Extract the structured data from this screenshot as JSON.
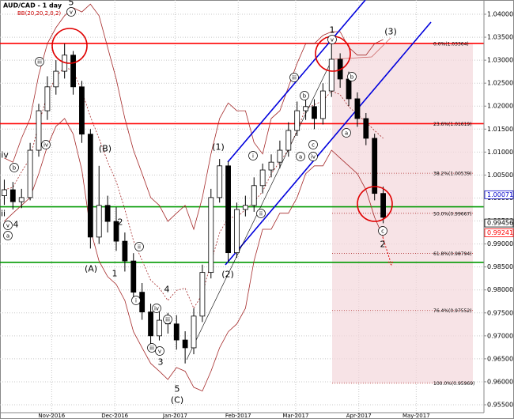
{
  "chart_data": {
    "type": "candlestick",
    "title": "AUD/CAD - 1 day",
    "subtitle": "BB(20,20,2,0,2)",
    "xlim": [
      0,
      168.6
    ],
    "ylim": [
      0.95328,
      1.0431
    ],
    "grid": true,
    "xticks": [
      {
        "value": 18,
        "label": "Nov-2016"
      },
      {
        "value": 40,
        "label": "Dec-2016"
      },
      {
        "value": 61,
        "label": "Jan-2017"
      },
      {
        "value": 83,
        "label": "Feb-2017"
      },
      {
        "value": 103,
        "label": "Mar-2017"
      },
      {
        "value": 125,
        "label": "Apr-2017"
      },
      {
        "value": 145,
        "label": "May-2017"
      }
    ],
    "yticks": [
      {
        "value": 1.04,
        "label": "1.04000"
      },
      {
        "value": 1.035,
        "label": "1.03500"
      },
      {
        "value": 1.03,
        "label": "1.03000"
      },
      {
        "value": 1.025,
        "label": "1.02500"
      },
      {
        "value": 1.02,
        "label": "1.02000"
      },
      {
        "value": 1.015,
        "label": "1.01500"
      },
      {
        "value": 1.01,
        "label": "1.01000"
      },
      {
        "value": 1.005,
        "label": "1.00500"
      },
      {
        "value": 1.0,
        "label": "1.00000"
      },
      {
        "value": 0.995,
        "label": "0.99500"
      },
      {
        "value": 0.99,
        "label": "0.99000"
      },
      {
        "value": 0.985,
        "label": "0.98500"
      },
      {
        "value": 0.98,
        "label": "0.98000"
      },
      {
        "value": 0.975,
        "label": "0.97500"
      },
      {
        "value": 0.97,
        "label": "0.97000"
      },
      {
        "value": 0.965,
        "label": "0.96500"
      },
      {
        "value": 0.96,
        "label": "0.96000"
      },
      {
        "value": 0.955,
        "label": "0.95500"
      }
    ],
    "x": [
      1.5,
      4.5,
      7.5,
      10.5,
      13.5,
      16.5,
      19.5,
      22.5,
      25.5,
      28.5,
      31.5,
      34.5,
      37.5,
      40.5,
      43.5,
      46.5,
      49.5,
      52.5,
      55.5,
      58.5,
      61.5,
      64.5,
      67.5,
      70.5,
      73.5,
      76.5,
      79.5,
      82.5,
      85.5,
      88.5,
      91.5,
      94.5,
      97.5,
      100.5,
      103.5,
      106.5,
      109.5,
      112.5,
      115.5,
      118.5,
      121.5,
      124.5,
      127.5,
      130.5,
      133.5
    ],
    "open": [
      1.0005,
      1.0018,
      0.9992,
      1.0001,
      1.0104,
      1.019,
      1.0242,
      1.0276,
      1.0311,
      1.0242,
      1.0139,
      0.9915,
      0.9984,
      0.9949,
      0.9906,
      0.9863,
      0.9795,
      0.9752,
      0.97,
      0.9734,
      0.9726,
      0.9691,
      0.9674,
      0.9743,
      0.9838,
      1.0001,
      1.007,
      0.9881,
      0.9975,
      0.9984,
      1.0027,
      1.0061,
      1.0078,
      1.0104,
      1.0147,
      1.019,
      1.0199,
      1.0173,
      1.0233,
      1.0302,
      1.0259,
      1.0216,
      1.0173,
      1.013,
      1.001
    ],
    "high": [
      1.004,
      1.0035,
      1.002,
      1.012,
      1.0205,
      1.0265,
      1.03,
      1.0336,
      1.032,
      1.0255,
      1.015,
      1.007,
      1.0005,
      0.998,
      0.9925,
      0.988,
      0.9815,
      0.977,
      0.976,
      0.975,
      0.9745,
      0.971,
      0.976,
      0.9855,
      1.002,
      1.0085,
      1.008,
      0.999,
      1.0005,
      1.0045,
      1.0075,
      1.0095,
      1.0125,
      1.0165,
      1.021,
      1.023,
      1.0215,
      1.025,
      1.0336,
      1.0315,
      1.0275,
      1.023,
      1.0185,
      1.014,
      1.0025
    ],
    "low": [
      0.9985,
      0.9975,
      0.9978,
      0.9995,
      1.009,
      1.017,
      1.0225,
      1.026,
      1.0225,
      1.012,
      0.989,
      0.99,
      0.9925,
      0.9885,
      0.984,
      0.9775,
      0.9735,
      0.968,
      0.969,
      0.9705,
      0.967,
      0.964,
      0.966,
      0.973,
      0.9825,
      0.999,
      0.986,
      0.987,
      0.996,
      0.997,
      1.001,
      1.0045,
      1.0065,
      1.009,
      1.0135,
      1.017,
      1.015,
      1.016,
      1.022,
      1.024,
      1.02,
      1.0155,
      1.0115,
      0.9995,
      0.9945
    ],
    "close": [
      1.0018,
      0.9992,
      1.0001,
      1.0104,
      1.019,
      1.0242,
      1.0276,
      1.0311,
      1.0242,
      1.0139,
      0.9915,
      0.9984,
      0.9949,
      0.9906,
      0.9863,
      0.9795,
      0.9752,
      0.97,
      0.9734,
      0.9726,
      0.9691,
      0.9674,
      0.9743,
      0.9838,
      1.0001,
      1.007,
      0.9881,
      0.9975,
      0.9984,
      1.0027,
      1.0061,
      1.0078,
      1.0104,
      1.0147,
      1.019,
      1.0199,
      1.0173,
      1.0233,
      1.0302,
      1.0259,
      1.0216,
      1.0173,
      1.013,
      1.001,
      0.9958
    ],
    "up_color": "#ffffff",
    "down_color": "#000000",
    "bollinger": {
      "color": "#a52a2a",
      "upper": [
        1.0087,
        1.0078,
        1.013,
        1.0173,
        1.0268,
        1.0336,
        1.0371,
        1.0397,
        1.0414,
        1.0405,
        1.0422,
        1.0397,
        1.0328,
        1.0259,
        1.0173,
        1.0104,
        1.0053,
        1.0001,
        0.9984,
        0.9949,
        0.9967,
        0.9984,
        0.9932,
        1.0001,
        1.0096,
        1.0173,
        1.0207,
        1.019,
        1.019,
        1.0121,
        1.0096,
        1.0173,
        1.019,
        1.0242,
        1.0293,
        1.0336,
        1.0336,
        1.0354,
        1.0362,
        1.0362,
        1.0328,
        1.0311,
        1.0311,
        1.0336,
        1.0345
      ],
      "middle": [
        1.0018,
        1.0023,
        1.0057,
        1.0087,
        1.0161,
        1.0225,
        1.0264,
        1.0285,
        1.0277,
        1.0233,
        1.0177,
        1.013,
        1.0079,
        1.0036,
        0.9975,
        0.9907,
        0.9864,
        0.9821,
        0.9804,
        0.9777,
        0.9799,
        0.9804,
        0.976,
        0.9791,
        0.986,
        0.9924,
        0.9958,
        0.9958,
        0.9975,
        0.9992,
        1.0014,
        1.0053,
        1.0079,
        1.0105,
        1.0147,
        1.0195,
        1.0203,
        1.0212,
        1.0233,
        1.0225,
        1.0199,
        1.0182,
        1.0165,
        1.0147,
        1.013
      ],
      "lower": [
        0.9949,
        0.9967,
        0.9984,
        1.0001,
        1.0053,
        1.0113,
        1.0156,
        1.0173,
        1.0139,
        1.0061,
        0.9932,
        0.9863,
        0.9829,
        0.9812,
        0.9777,
        0.9709,
        0.9674,
        0.964,
        0.9623,
        0.9605,
        0.9631,
        0.9623,
        0.9588,
        0.958,
        0.9623,
        0.9674,
        0.9709,
        0.9726,
        0.976,
        0.9863,
        0.9932,
        0.9932,
        0.9967,
        0.9967,
        1.0001,
        1.0053,
        1.007,
        1.007,
        1.0104,
        1.0087,
        1.007,
        1.0053,
        1.0018,
        0.9958,
        0.9915
      ]
    },
    "levels": [
      {
        "value": 1.03364,
        "color": "#ff0000"
      },
      {
        "value": 1.01619,
        "color": "#ff0000"
      },
      {
        "value": 0.9981,
        "color": "#009900"
      },
      {
        "value": 0.986,
        "color": "#009900"
      }
    ],
    "fibonacci": [
      {
        "value": 1.03364,
        "label": "0.0%(1.03364)"
      },
      {
        "value": 1.01619,
        "label": "23.6%(1.01619)"
      },
      {
        "value": 1.00539,
        "label": "38.2%(1.00539)"
      },
      {
        "value": 0.99667,
        "label": "50.0%(0.99667)"
      },
      {
        "value": 0.98794,
        "label": "61.8%(0.98794)"
      },
      {
        "value": 0.97552,
        "label": "76.4%(0.97552)"
      },
      {
        "value": 0.95969,
        "label": "100.0%(0.95969)"
      }
    ],
    "fib_color": "#f4d7dc",
    "price_tags": [
      {
        "value": 1.00071,
        "label": "1.00071",
        "color": "#0000cc"
      },
      {
        "value": 0.99456,
        "label": "0.99456",
        "color": "#000000"
      },
      {
        "value": 0.99241,
        "label": "0.99241",
        "color": "#ff0000"
      }
    ],
    "annotations": [
      "5",
      "v",
      "iii",
      "iv",
      "iv",
      "b",
      "ii",
      "v",
      "4",
      "a",
      "(B)",
      "2",
      "ii",
      "(A)",
      "1",
      "i",
      "iii",
      "iv",
      "4",
      "iii",
      "v",
      "3",
      "5",
      "(C)",
      "(1)",
      "i",
      "ii",
      "(2)",
      "iii",
      "b",
      "a",
      "c",
      "iv",
      "1",
      "v",
      "(3)",
      "b",
      "a",
      "c",
      "2"
    ]
  }
}
